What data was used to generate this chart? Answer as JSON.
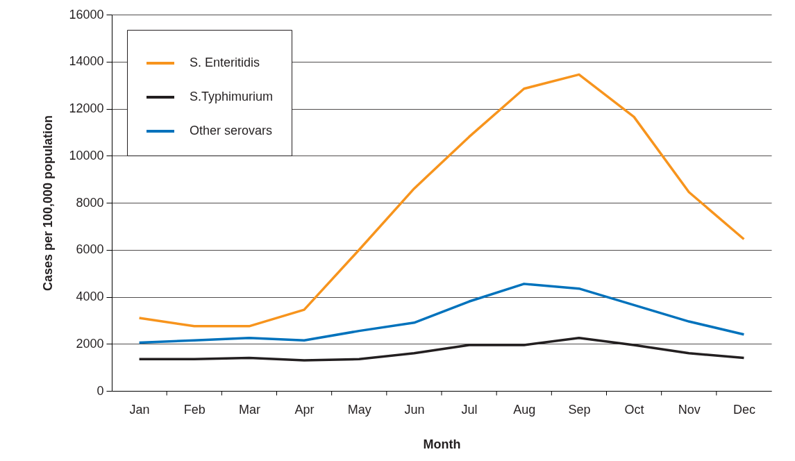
{
  "chart_data": {
    "type": "line",
    "xlabel": "Month",
    "ylabel": "Cases per 100,000 population",
    "categories": [
      "Jan",
      "Feb",
      "Mar",
      "Apr",
      "May",
      "Jun",
      "Jul",
      "Aug",
      "Sep",
      "Oct",
      "Nov",
      "Dec"
    ],
    "series": [
      {
        "name": "S. Enteritidis",
        "color": "#f7941d",
        "values": [
          3100,
          2750,
          2750,
          3450,
          6000,
          8600,
          10800,
          12850,
          13450,
          11650,
          8450,
          6450
        ]
      },
      {
        "name": "S.Typhimurium",
        "color": "#231f20",
        "values": [
          1350,
          1350,
          1400,
          1300,
          1350,
          1600,
          1950,
          1950,
          2250,
          1950,
          1600,
          1400
        ]
      },
      {
        "name": "Other serovars",
        "color": "#0072bc",
        "values": [
          2050,
          2150,
          2250,
          2150,
          2550,
          2900,
          3800,
          4550,
          4350,
          3650,
          2950,
          2400
        ]
      }
    ],
    "ylim": [
      0,
      16000
    ],
    "yticks": [
      0,
      2000,
      4000,
      6000,
      8000,
      10000,
      12000,
      14000,
      16000
    ],
    "grid": "y",
    "legend": "top left",
    "marker": "none",
    "line_style": "solid"
  }
}
